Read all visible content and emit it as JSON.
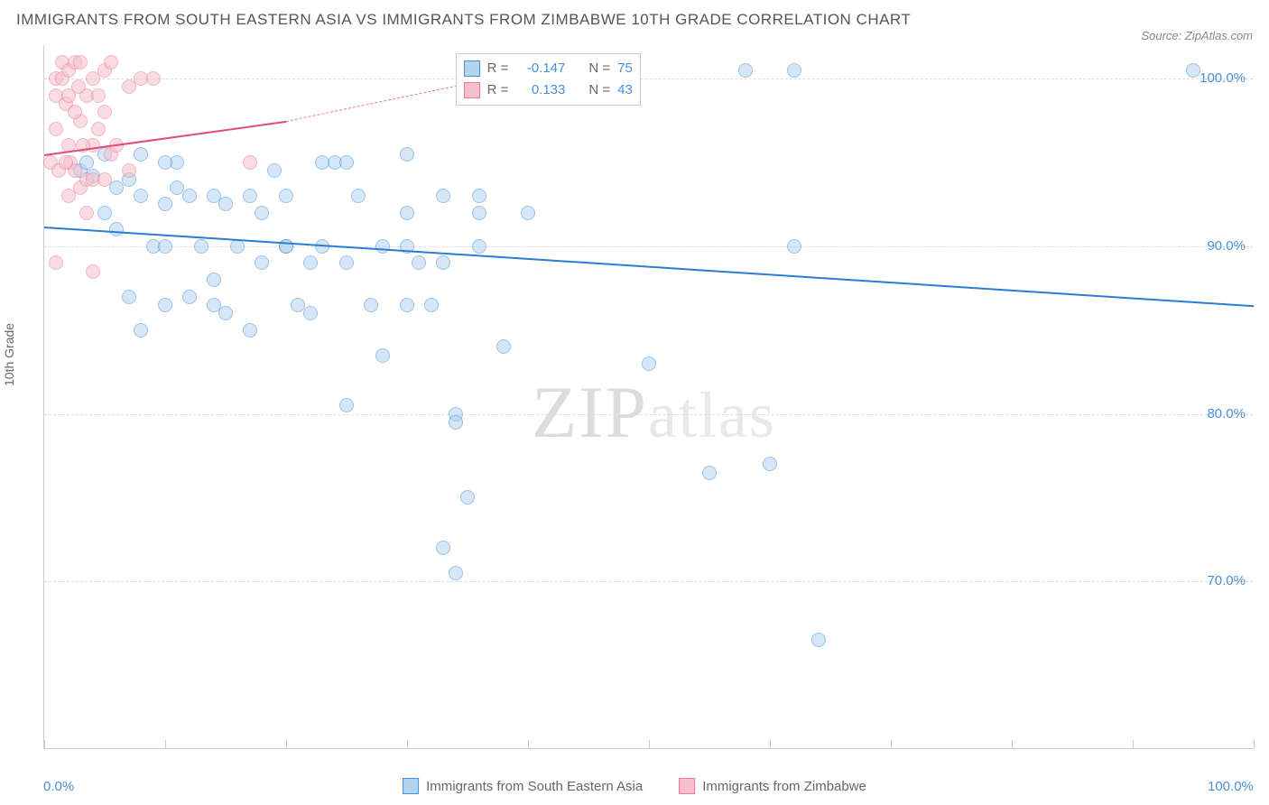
{
  "title": "IMMIGRANTS FROM SOUTH EASTERN ASIA VS IMMIGRANTS FROM ZIMBABWE 10TH GRADE CORRELATION CHART",
  "source": "Source: ZipAtlas.com",
  "watermark": "ZIPatlas",
  "ylabel": "10th Grade",
  "chart": {
    "type": "scatter",
    "xlim": [
      0,
      100
    ],
    "ylim": [
      60,
      102
    ],
    "y_ticks": [
      70,
      80,
      90,
      100
    ],
    "y_tick_labels": [
      "70.0%",
      "80.0%",
      "90.0%",
      "100.0%"
    ],
    "x_ticks": [
      0,
      10,
      20,
      30,
      40,
      50,
      60,
      70,
      80,
      90,
      100
    ],
    "x_tick_labels_shown": {
      "0": "0.0%",
      "100": "100.0%"
    },
    "background_color": "#ffffff",
    "grid_color": "#dddddd",
    "series": [
      {
        "name": "Immigrants from South Eastern Asia",
        "color_fill": "#b3d4f0",
        "color_stroke": "#4a8fd8",
        "marker_size": 16,
        "fill_opacity": 0.55,
        "r": -0.147,
        "n": 75,
        "trend": {
          "x1": 0,
          "y1": 91.2,
          "x2": 100,
          "y2": 86.5,
          "color": "#2b7cd3",
          "width": 2,
          "dash": "solid"
        },
        "points": [
          [
            3,
            94.5
          ],
          [
            4,
            94.2
          ],
          [
            3.5,
            95
          ],
          [
            5,
            92
          ],
          [
            5,
            95.5
          ],
          [
            6,
            93.5
          ],
          [
            7,
            94
          ],
          [
            8,
            93
          ],
          [
            8,
            95.5
          ],
          [
            9,
            90
          ],
          [
            10,
            90
          ],
          [
            10,
            92.5
          ],
          [
            11,
            93.5
          ],
          [
            12,
            93
          ],
          [
            12,
            87
          ],
          [
            13,
            90
          ],
          [
            14,
            93
          ],
          [
            14,
            86.5
          ],
          [
            15,
            92.5
          ],
          [
            16,
            90
          ],
          [
            10,
            86.5
          ],
          [
            17,
            93
          ],
          [
            18,
            89
          ],
          [
            19,
            94.5
          ],
          [
            20,
            93
          ],
          [
            20,
            90
          ],
          [
            21,
            86.5
          ],
          [
            22,
            89
          ],
          [
            23,
            90
          ],
          [
            24,
            95
          ],
          [
            25,
            89
          ],
          [
            25,
            80.5
          ],
          [
            26,
            93
          ],
          [
            27,
            86.5
          ],
          [
            28,
            83.5
          ],
          [
            30,
            86.5
          ],
          [
            30,
            90
          ],
          [
            31,
            89
          ],
          [
            32,
            86.5
          ],
          [
            33,
            93
          ],
          [
            34,
            80
          ],
          [
            34,
            79.5
          ],
          [
            35,
            75
          ],
          [
            30,
            95.5
          ],
          [
            33,
            72
          ],
          [
            34,
            70.5
          ],
          [
            36,
            92
          ],
          [
            36,
            90
          ],
          [
            38,
            84
          ],
          [
            40,
            92
          ],
          [
            50,
            83
          ],
          [
            55,
            76.5
          ],
          [
            58,
            100.5
          ],
          [
            62,
            100.5
          ],
          [
            62,
            90
          ],
          [
            64,
            66.5
          ],
          [
            95,
            100.5
          ],
          [
            8,
            85
          ],
          [
            11,
            95
          ],
          [
            6,
            91
          ],
          [
            14,
            88
          ],
          [
            15,
            86
          ],
          [
            22,
            86
          ],
          [
            23,
            95
          ],
          [
            18,
            92
          ],
          [
            33,
            89
          ],
          [
            20,
            90
          ],
          [
            10,
            95
          ],
          [
            7,
            87
          ],
          [
            60,
            77
          ],
          [
            25,
            95
          ],
          [
            28,
            90
          ],
          [
            30,
            92
          ],
          [
            17,
            85
          ],
          [
            36,
            93
          ]
        ]
      },
      {
        "name": "Immigrants from Zimbabwe",
        "color_fill": "#f5c0cb",
        "color_stroke": "#e87a9a",
        "marker_size": 16,
        "fill_opacity": 0.55,
        "r": 0.133,
        "n": 43,
        "trend_solid": {
          "x1": 0,
          "y1": 95.5,
          "x2": 20,
          "y2": 97.5,
          "color": "#e24a7a",
          "width": 2
        },
        "trend_dash": {
          "x1": 20,
          "y1": 97.5,
          "x2": 40,
          "y2": 100.5,
          "color": "#e87a9a",
          "width": 1
        },
        "points": [
          [
            0.5,
            95
          ],
          [
            1,
            100
          ],
          [
            1,
            99
          ],
          [
            1,
            97
          ],
          [
            1.2,
            94.5
          ],
          [
            1.5,
            101
          ],
          [
            1.5,
            100
          ],
          [
            1.8,
            98.5
          ],
          [
            2,
            100.5
          ],
          [
            2,
            99
          ],
          [
            2,
            96
          ],
          [
            2,
            93
          ],
          [
            2.2,
            95
          ],
          [
            2.5,
            101
          ],
          [
            2.5,
            94.5
          ],
          [
            3,
            101
          ],
          [
            3,
            97.5
          ],
          [
            3,
            93.5
          ],
          [
            3.5,
            99
          ],
          [
            3.5,
            94
          ],
          [
            3.5,
            92
          ],
          [
            4,
            100
          ],
          [
            4,
            96
          ],
          [
            4,
            94
          ],
          [
            4,
            88.5
          ],
          [
            4.5,
            99
          ],
          [
            4.5,
            97
          ],
          [
            5,
            100.5
          ],
          [
            5,
            98
          ],
          [
            5,
            94
          ],
          [
            5.5,
            101
          ],
          [
            5.5,
            95.5
          ],
          [
            6,
            96
          ],
          [
            7,
            99.5
          ],
          [
            7,
            94.5
          ],
          [
            8,
            100
          ],
          [
            9,
            100
          ],
          [
            17,
            95
          ],
          [
            1,
            89
          ],
          [
            2.5,
            98
          ],
          [
            1.8,
            95
          ],
          [
            3.2,
            96
          ],
          [
            2.8,
            99.5
          ]
        ]
      }
    ],
    "legend_stats": {
      "rows": [
        {
          "swatch_fill": "#b3d4f0",
          "swatch_stroke": "#4a8fd8",
          "r_label": "R =",
          "r_val": "-0.147",
          "n_label": "N =",
          "n_val": "75"
        },
        {
          "swatch_fill": "#f5c0cb",
          "swatch_stroke": "#e87a9a",
          "r_label": "R =",
          "r_val": "0.133",
          "n_label": "N =",
          "n_val": "43"
        }
      ]
    }
  }
}
